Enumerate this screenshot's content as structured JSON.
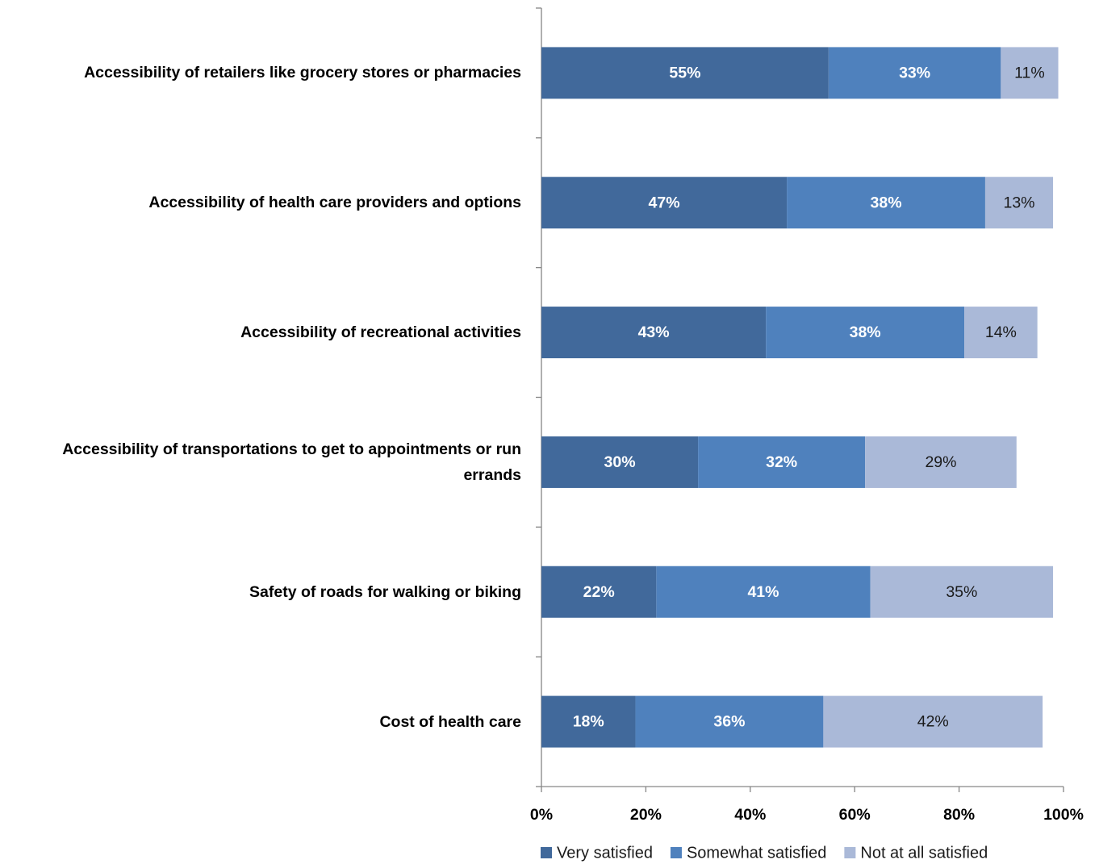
{
  "chart_data": {
    "type": "stacked-bar-horizontal",
    "categories": [
      "Accessibility of retailers like grocery stores or pharmacies",
      "Accessibility of health care providers and options",
      "Accessibility of recreational activities",
      "Accessibility of transportations to get to appointments or run errands",
      "Safety of roads for walking or biking",
      "Cost of health care"
    ],
    "series": [
      {
        "name": "Very satisfied",
        "color": "#41699b",
        "label_color": "#ffffff",
        "values": [
          55,
          47,
          43,
          30,
          22,
          18
        ],
        "value_labels": [
          "55%",
          "47%",
          "43%",
          "30%",
          "22%",
          "18%"
        ]
      },
      {
        "name": "Somewhat satisfied",
        "color": "#4f81bd",
        "label_color": "#ffffff",
        "values": [
          33,
          38,
          38,
          32,
          41,
          36
        ],
        "value_labels": [
          "33%",
          "38%",
          "38%",
          "32%",
          "41%",
          "36%"
        ]
      },
      {
        "name": "Not at all satisfied",
        "color": "#aab9d8",
        "label_color": "#1a1a1a",
        "values": [
          11,
          13,
          14,
          29,
          35,
          42
        ],
        "value_labels": [
          "11%",
          "13%",
          "14%",
          "29%",
          "35%",
          "42%"
        ]
      }
    ],
    "xlim": [
      0,
      100
    ],
    "xticks": [
      {
        "value": 0,
        "label": "0%"
      },
      {
        "value": 20,
        "label": "20%"
      },
      {
        "value": 40,
        "label": "40%"
      },
      {
        "value": 60,
        "label": "60%"
      },
      {
        "value": 80,
        "label": "80%"
      },
      {
        "value": 100,
        "label": "100%"
      }
    ],
    "legend": "bottom"
  }
}
